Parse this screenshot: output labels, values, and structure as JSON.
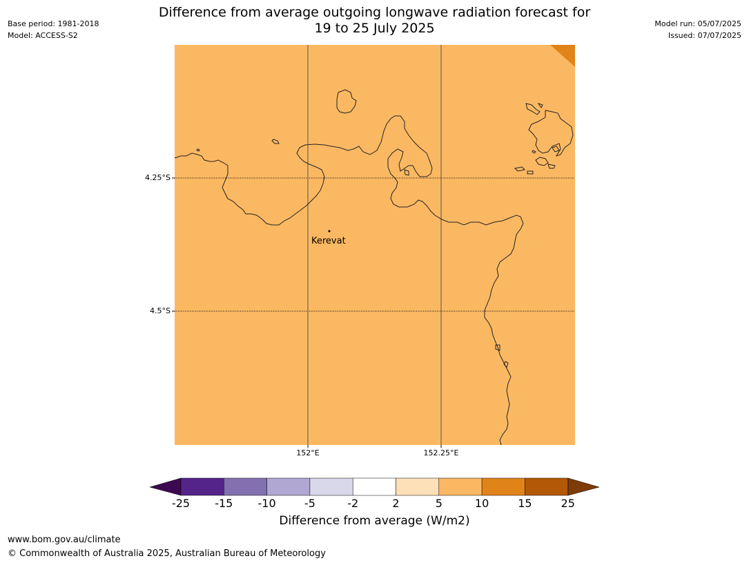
{
  "header": {
    "title_line1": "Difference from average outgoing longwave radiation forecast for",
    "title_line2": "19 to 25 July 2025",
    "base_period": "Base period: 1981-2018",
    "model": "Model: ACCESS-S2",
    "model_run": "Model run: 05/07/2025",
    "issued": "Issued: 07/07/2025"
  },
  "map": {
    "fill_color": "#fbb862",
    "corner_color": "#e0841a",
    "lat_labels": [
      "4.25°S",
      "4.5°S"
    ],
    "lon_labels": [
      "152°E",
      "152.25°E"
    ],
    "place": "Kerevat"
  },
  "colorbar": {
    "ticks": [
      "-25",
      "-15",
      "-10",
      "-5",
      "-2",
      "2",
      "5",
      "10",
      "15",
      "25"
    ],
    "colors": [
      "#3c0a50",
      "#55248a",
      "#8270b0",
      "#b0a8d2",
      "#d8d8ea",
      "#ffffff",
      "#fee0b8",
      "#fbb862",
      "#e0841a",
      "#b35806",
      "#7f3b08"
    ],
    "label": "Difference from average (W/m2)"
  },
  "footer": {
    "url": "www.bom.gov.au/climate",
    "copyright": "© Commonwealth of Australia 2025, Australian Bureau of Meteorology"
  }
}
